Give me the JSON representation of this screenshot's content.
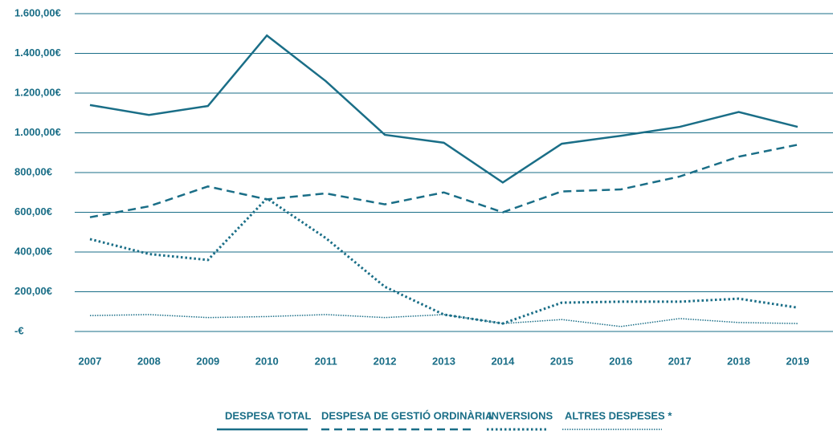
{
  "chart_data": {
    "type": "line",
    "categories": [
      "2007",
      "2008",
      "2009",
      "2010",
      "2011",
      "2012",
      "2013",
      "2014",
      "2015",
      "2016",
      "2017",
      "2018",
      "2019"
    ],
    "series": [
      {
        "name": "DESPESA TOTAL",
        "color": "#1a6e87",
        "style": "solid",
        "values": [
          1140,
          1090,
          1135,
          1490,
          1260,
          990,
          950,
          750,
          945,
          985,
          1030,
          1105,
          1030
        ]
      },
      {
        "name": "DESPESA DE GESTIÓ ORDINÀRIA",
        "color": "#1a6e87",
        "style": "dashed",
        "values": [
          575,
          630,
          730,
          665,
          695,
          640,
          700,
          600,
          705,
          715,
          780,
          880,
          940
        ]
      },
      {
        "name": "INVERSIONS",
        "color": "#1a6e87",
        "style": "dotted",
        "values": [
          465,
          390,
          360,
          670,
          470,
          225,
          85,
          40,
          145,
          150,
          150,
          165,
          120
        ]
      },
      {
        "name": "ALTRES DESPESES *",
        "color": "#1a6e87",
        "style": "fine-dotted",
        "values": [
          80,
          85,
          70,
          75,
          85,
          70,
          85,
          40,
          60,
          25,
          65,
          45,
          40
        ]
      }
    ],
    "ylim": [
      0,
      1600
    ],
    "yticks": [
      {
        "value": 0,
        "label": "-€"
      },
      {
        "value": 200,
        "label": "200,00€"
      },
      {
        "value": 400,
        "label": "400,00€"
      },
      {
        "value": 600,
        "label": "600,00€"
      },
      {
        "value": 800,
        "label": "800,00€"
      },
      {
        "value": 1000,
        "label": "1.000,00€"
      },
      {
        "value": 1200,
        "label": "1.200,00€"
      },
      {
        "value": 1400,
        "label": "1.400,00€"
      },
      {
        "value": 1600,
        "label": "1.600,00€"
      }
    ],
    "grid": true,
    "legend": "bottom"
  }
}
